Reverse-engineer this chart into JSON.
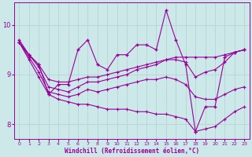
{
  "xlabel": "Windchill (Refroidissement éolien,°C)",
  "background_color": "#cce8e8",
  "line_color": "#990099",
  "grid_color": "#aacccc",
  "xlim": [
    -0.5,
    23.5
  ],
  "ylim": [
    7.7,
    10.45
  ],
  "xticks": [
    0,
    1,
    2,
    3,
    4,
    5,
    6,
    7,
    8,
    9,
    10,
    11,
    12,
    13,
    14,
    15,
    16,
    17,
    18,
    19,
    20,
    21,
    22,
    23
  ],
  "yticks": [
    8,
    9,
    10
  ],
  "series_markers": [
    [
      9.7,
      9.4,
      9.2,
      8.6,
      8.8,
      8.8,
      9.5,
      9.7,
      9.2,
      9.1,
      9.4,
      9.4,
      9.6,
      9.6,
      9.5,
      10.3,
      9.7,
      9.2,
      7.85,
      8.35,
      8.35,
      9.35,
      9.45,
      9.5
    ]
  ],
  "series_smooth": [
    [
      9.65,
      9.4,
      9.2,
      8.9,
      8.85,
      8.85,
      8.9,
      8.95,
      8.95,
      9.0,
      9.05,
      9.1,
      9.15,
      9.2,
      9.25,
      9.3,
      9.35,
      9.35,
      9.35,
      9.35,
      9.35,
      9.4,
      9.45,
      9.5
    ],
    [
      9.65,
      9.4,
      9.15,
      8.75,
      8.7,
      8.65,
      8.75,
      8.85,
      8.85,
      8.9,
      8.95,
      9.0,
      9.1,
      9.15,
      9.2,
      9.3,
      9.3,
      9.25,
      8.95,
      9.05,
      9.1,
      9.25,
      9.45,
      9.5
    ],
    [
      9.65,
      9.35,
      9.05,
      8.65,
      8.6,
      8.55,
      8.6,
      8.7,
      8.65,
      8.7,
      8.75,
      8.8,
      8.85,
      8.9,
      8.9,
      8.95,
      8.9,
      8.8,
      8.55,
      8.5,
      8.5,
      8.6,
      8.7,
      8.75
    ],
    [
      9.65,
      9.3,
      8.95,
      8.6,
      8.5,
      8.45,
      8.4,
      8.4,
      8.35,
      8.3,
      8.3,
      8.3,
      8.25,
      8.25,
      8.2,
      8.2,
      8.15,
      8.1,
      7.85,
      7.9,
      7.95,
      8.1,
      8.25,
      8.35
    ]
  ]
}
